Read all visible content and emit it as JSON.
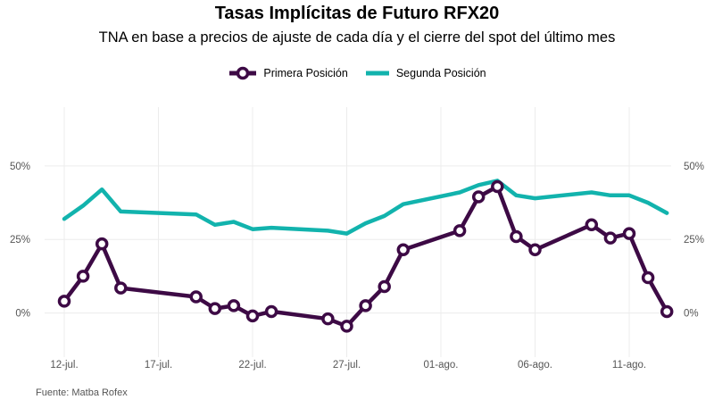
{
  "title": "Tasas Implícitas de Futuro RFX20",
  "subtitle": "TNA en base a precios de ajuste de cada día y el cierre del spot del último mes",
  "source": "Fuente: Matba Rofex",
  "colors": {
    "primera": "#3d0a45",
    "segunda": "#12b3ad",
    "grid": "#ececec"
  },
  "chart_data": {
    "type": "line",
    "x_tick_labels": [
      "12-jul.",
      "17-jul.",
      "22-jul.",
      "27-jul.",
      "01-ago.",
      "06-ago.",
      "11-ago."
    ],
    "y_tick_labels": [
      "0%",
      "25%",
      "50%"
    ],
    "y_ticks": [
      0,
      25,
      50
    ],
    "ylim": [
      -15,
      70
    ],
    "grid": true,
    "legend_position": "top",
    "series": [
      {
        "name": "Primera Posición",
        "key": "primera",
        "markers": true,
        "points": [
          [
            "2021-07-12",
            4
          ],
          [
            "2021-07-13",
            12.5
          ],
          [
            "2021-07-14",
            23.5
          ],
          [
            "2021-07-15",
            8.5
          ],
          [
            "2021-07-19",
            5.5
          ],
          [
            "2021-07-20",
            1.5
          ],
          [
            "2021-07-21",
            2.5
          ],
          [
            "2021-07-22",
            -1
          ],
          [
            "2021-07-23",
            0.5
          ],
          [
            "2021-07-26",
            -2
          ],
          [
            "2021-07-27",
            -4.5
          ],
          [
            "2021-07-28",
            2.5
          ],
          [
            "2021-07-29",
            9
          ],
          [
            "2021-07-30",
            21.5
          ],
          [
            "2021-08-02",
            28
          ],
          [
            "2021-08-03",
            39.5
          ],
          [
            "2021-08-04",
            43
          ],
          [
            "2021-08-05",
            26
          ],
          [
            "2021-08-06",
            21.5
          ],
          [
            "2021-08-09",
            30
          ],
          [
            "2021-08-10",
            25.5
          ],
          [
            "2021-08-11",
            27
          ],
          [
            "2021-08-12",
            12
          ],
          [
            "2021-08-13",
            0.5
          ]
        ]
      },
      {
        "name": "Segunda Posición",
        "key": "segunda",
        "markers": false,
        "points": [
          [
            "2021-07-12",
            32
          ],
          [
            "2021-07-13",
            36.5
          ],
          [
            "2021-07-14",
            42
          ],
          [
            "2021-07-15",
            34.5
          ],
          [
            "2021-07-19",
            33.5
          ],
          [
            "2021-07-20",
            30
          ],
          [
            "2021-07-21",
            31
          ],
          [
            "2021-07-22",
            28.5
          ],
          [
            "2021-07-23",
            29
          ],
          [
            "2021-07-26",
            28
          ],
          [
            "2021-07-27",
            27
          ],
          [
            "2021-07-28",
            30.5
          ],
          [
            "2021-07-29",
            33
          ],
          [
            "2021-07-30",
            37
          ],
          [
            "2021-08-02",
            41
          ],
          [
            "2021-08-03",
            43.5
          ],
          [
            "2021-08-04",
            45
          ],
          [
            "2021-08-05",
            40
          ],
          [
            "2021-08-06",
            39
          ],
          [
            "2021-08-09",
            41
          ],
          [
            "2021-08-10",
            40
          ],
          [
            "2021-08-11",
            40
          ],
          [
            "2021-08-12",
            37.5
          ],
          [
            "2021-08-13",
            34
          ]
        ]
      }
    ]
  }
}
